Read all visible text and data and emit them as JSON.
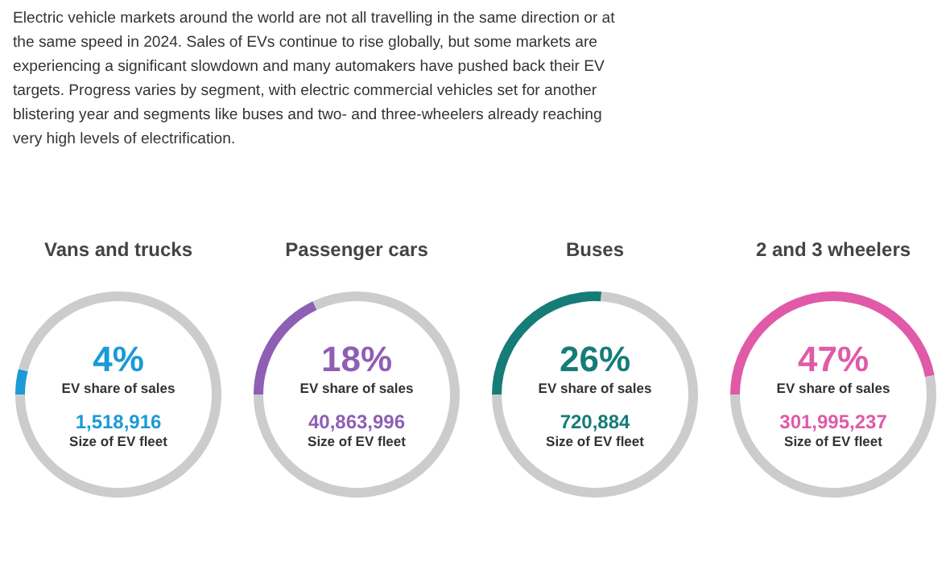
{
  "chart_data": [
    {
      "type": "other",
      "annotations": [
        "Electric vehicle markets around the world are not all travelling in the same direction or at the same speed in 2024. Sales of EVs continue to rise globally, but some markets are experiencing a significant slowdown and many automakers have pushed back their EV targets. Progress varies by segment, with electric commercial vehicles set for another blistering year and segments like buses and two- and three-wheelers already reaching very high levels of electrification."
      ]
    },
    {
      "type": "donut",
      "title": "Vans and trucks",
      "categories": [
        null,
        null
      ],
      "values": [
        4,
        96
      ],
      "colors": [
        "#1a9ad6",
        "#cccccc"
      ],
      "annotations": [
        "4%",
        "EV share of sales",
        "1,518,916",
        "Size of EV fleet"
      ]
    },
    {
      "type": "donut",
      "title": "Passenger cars",
      "categories": [
        null,
        null
      ],
      "values": [
        18,
        82
      ],
      "colors": [
        "#8e5fb4",
        "#cccccc"
      ],
      "annotations": [
        "18%",
        "EV share of sales",
        "40,863,996",
        "Size of EV fleet"
      ]
    },
    {
      "type": "donut",
      "title": "Buses",
      "categories": [
        null,
        null
      ],
      "values": [
        26,
        74
      ],
      "colors": [
        "#167c78",
        "#cccccc"
      ],
      "annotations": [
        "26%",
        "EV share of sales",
        "720,884",
        "Size of EV fleet"
      ]
    },
    {
      "type": "donut",
      "title": "2 and 3 wheelers",
      "categories": [
        null,
        null
      ],
      "values": [
        47,
        53
      ],
      "colors": [
        "#e05aa8",
        "#cccccc"
      ],
      "annotations": [
        "47%",
        "EV share of sales",
        "301,995,237",
        "Size of EV fleet"
      ]
    }
  ]
}
